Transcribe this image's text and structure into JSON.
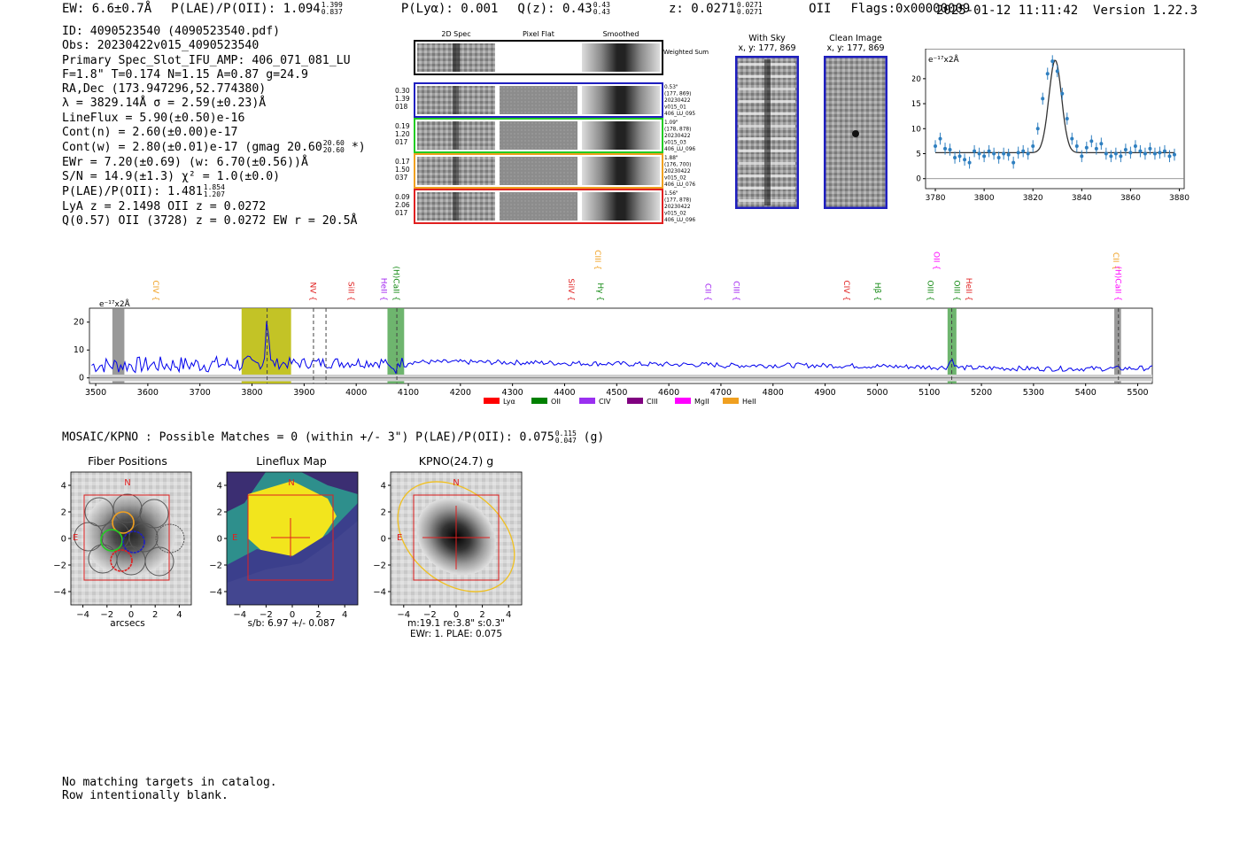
{
  "header": {
    "ew": "EW: 6.6±0.7Å",
    "plae_label": "P(LAE)/P(OII): 1.094",
    "plae_hi": "1.399",
    "plae_lo": "0.837",
    "plya": "P(Lyα): 0.001",
    "qz_label": "Q(z): 0.43",
    "qz_hi": "0.43",
    "qz_lo": "0.43",
    "z_label": "z: 0.0271",
    "z_hi": "0.0271",
    "z_lo": "0.0271",
    "z_line": "OII",
    "flags": "Flags:0x00000009",
    "timestamp": "2025-01-12 11:11:42",
    "version": "Version 1.22.3"
  },
  "info": {
    "id": "ID: 4090523540 (4090523540.pdf)",
    "obs": "Obs: 20230422v015_4090523540",
    "primary": "Primary Spec_Slot_IFU_AMP: 406_071_081_LU",
    "params": "F=1.8\"  T=0.174  N=1.15  A=0.87  g=24.9",
    "radec": "RA,Dec (173.947296,52.774380)",
    "lambda": "λ = 3829.14Å   σ = 2.59(±0.23)Å",
    "lineflux": "LineFlux = 5.90(±0.50)e-16",
    "contn": "Cont(n) = 2.60(±0.00)e-17",
    "contw": "Cont(w) = 2.80(±0.01)e-17 (gmag 20.60",
    "gmag_hi": "20.60",
    "gmag_lo": "20.60",
    "contw_end": "*)",
    "ewr": "EWr = 7.20(±0.69) (w: 6.70(±0.56))Å",
    "sn": "S/N = 14.9(±1.3)  χ² = 1.0(±0.0)",
    "plae": "P(LAE)/P(OII): 1.481",
    "plae_hi": "1.854",
    "plae_lo": "1.207",
    "lya": "LyA z = 2.1498  OII z = 0.0272",
    "q": "Q(0.57) OII (3728) z = 0.0272  EW r = 20.5Å"
  },
  "cutouts": {
    "col_labels": [
      "2D Spec",
      "Pixel Flat",
      "Smoothed"
    ],
    "weighted": "Weighted Sum",
    "rows": [
      {
        "left": [
          "0.30",
          "1.39",
          "018"
        ],
        "right": [
          "0.53\"",
          "(177, 869)",
          "20230422",
          "v015_01",
          "406_LU_095"
        ],
        "color": "#1f1fbf"
      },
      {
        "left": [
          "0.19",
          "1.20",
          "017"
        ],
        "right": [
          "1.09\"",
          "(178, 878)",
          "20230422",
          "v015_03",
          "406_LU_096"
        ],
        "color": "#22cc22"
      },
      {
        "left": [
          "0.17",
          "1.50",
          "037"
        ],
        "right": [
          "1.88\"",
          "(176, 700)",
          "20230422",
          "v015_02",
          "406_LU_076"
        ],
        "color": "#f0a020"
      },
      {
        "left": [
          "0.09",
          "2.06",
          "017"
        ],
        "right": [
          "1.56\"",
          "(177, 878)",
          "20230422",
          "v015_02",
          "406_LU_096"
        ],
        "color": "#e02020"
      }
    ],
    "with_sky": "With Sky",
    "with_sky_xy": "x, y: 177, 869",
    "clean": "Clean Image",
    "clean_xy": "x, y: 177, 869"
  },
  "zoom_chart": {
    "type": "scatter",
    "title": "",
    "unit_label": "e⁻¹⁷x2Å",
    "xlim": [
      3776,
      3882
    ],
    "ylim": [
      -2,
      26
    ],
    "xticks": [
      3780,
      3800,
      3820,
      3840,
      3860,
      3880
    ],
    "yticks": [
      0,
      5,
      10,
      15,
      20
    ],
    "fit": {
      "center": 3829.14,
      "sigma": 2.59,
      "amp": 18.5,
      "cont": 5.2
    },
    "points": [
      [
        3780,
        6.5
      ],
      [
        3782,
        8
      ],
      [
        3784,
        6
      ],
      [
        3786,
        5.8
      ],
      [
        3788,
        4.2
      ],
      [
        3790,
        4.5
      ],
      [
        3792,
        3.8
      ],
      [
        3794,
        3.2
      ],
      [
        3796,
        5.5
      ],
      [
        3798,
        5
      ],
      [
        3800,
        4.5
      ],
      [
        3802,
        5.5
      ],
      [
        3804,
        5
      ],
      [
        3806,
        4.2
      ],
      [
        3808,
        5
      ],
      [
        3810,
        4.8
      ],
      [
        3812,
        3.2
      ],
      [
        3814,
        5.2
      ],
      [
        3816,
        5.5
      ],
      [
        3818,
        5
      ],
      [
        3820,
        6.5
      ],
      [
        3822,
        10
      ],
      [
        3824,
        16
      ],
      [
        3826,
        21
      ],
      [
        3828,
        23.5
      ],
      [
        3830,
        21.5
      ],
      [
        3832,
        17
      ],
      [
        3834,
        12
      ],
      [
        3836,
        8
      ],
      [
        3838,
        6.5
      ],
      [
        3840,
        4.5
      ],
      [
        3842,
        6.2
      ],
      [
        3844,
        7.5
      ],
      [
        3846,
        6
      ],
      [
        3848,
        7
      ],
      [
        3850,
        5
      ],
      [
        3852,
        4.5
      ],
      [
        3854,
        5
      ],
      [
        3856,
        4.5
      ],
      [
        3858,
        5.8
      ],
      [
        3860,
        5.2
      ],
      [
        3862,
        6.5
      ],
      [
        3864,
        5.5
      ],
      [
        3866,
        5
      ],
      [
        3868,
        6
      ],
      [
        3870,
        5
      ],
      [
        3872,
        5.2
      ],
      [
        3874,
        5.5
      ],
      [
        3876,
        4.5
      ],
      [
        3878,
        4.8
      ]
    ]
  },
  "spectrum_chart": {
    "type": "line",
    "unit_label": "e⁻¹⁷x2Å",
    "xlim": [
      3488,
      5528
    ],
    "ylim": [
      -2,
      25
    ],
    "xticks": [
      3500,
      3600,
      3700,
      3800,
      3900,
      4000,
      4100,
      4200,
      4300,
      4400,
      4500,
      4600,
      4700,
      4800,
      4900,
      5000,
      5100,
      5200,
      5300,
      5400,
      5500
    ],
    "yticks": [
      0,
      10,
      20
    ],
    "peak_wave": 3829.14,
    "dashed_lines": [
      3829,
      3918,
      3942,
      4078,
      5143,
      5463
    ],
    "bands": [
      {
        "x0": 3780,
        "x1": 3875,
        "color": "#b8b800"
      },
      {
        "x0": 4060,
        "x1": 4092,
        "color": "#55a855"
      },
      {
        "x0": 5135,
        "x1": 5152,
        "color": "#55a855"
      },
      {
        "x0": 3532,
        "x1": 3555,
        "color": "#777777"
      },
      {
        "x0": 5455,
        "x1": 5468,
        "color": "#777777"
      }
    ],
    "line_labels": [
      {
        "name": "CIV",
        "x": 3605,
        "color": "#f0a020",
        "row": 2
      },
      {
        "name": "NV",
        "x": 3907,
        "color": "#e02020",
        "row": 2
      },
      {
        "name": "SiII",
        "x": 3980,
        "color": "#e02020",
        "row": 2
      },
      {
        "name": "HeII",
        "x": 4043,
        "color": "#a020f0",
        "row": 2
      },
      {
        "name": "(H)CaII",
        "x": 4067,
        "color": "#118811",
        "row": 2
      },
      {
        "name": "SiIV",
        "x": 4403,
        "color": "#e02020",
        "row": 2
      },
      {
        "name": "CIII",
        "x": 4454,
        "color": "#f0a020",
        "row": 1
      },
      {
        "name": "Hγ",
        "x": 4459,
        "color": "#118811",
        "row": 2
      },
      {
        "name": "CII",
        "x": 4665,
        "color": "#a020f0",
        "row": 2
      },
      {
        "name": "CIII",
        "x": 4720,
        "color": "#a020f0",
        "row": 2
      },
      {
        "name": "CIV",
        "x": 4931,
        "color": "#e02020",
        "row": 2
      },
      {
        "name": "Hβ",
        "x": 4991,
        "color": "#118811",
        "row": 2
      },
      {
        "name": "OIII",
        "x": 5092,
        "color": "#118811",
        "row": 2
      },
      {
        "name": "OII",
        "x": 5104,
        "color": "#ff00ff",
        "row": 1
      },
      {
        "name": "OIII",
        "x": 5143,
        "color": "#118811",
        "row": 2
      },
      {
        "name": "HeII",
        "x": 5166,
        "color": "#e02020",
        "row": 2
      },
      {
        "name": "CII",
        "x": 5448,
        "color": "#f0a020",
        "row": 1
      },
      {
        "name": "(H)CaII",
        "x": 5452,
        "color": "#ff00ff",
        "row": 2
      }
    ],
    "legend": [
      {
        "name": "Lyα",
        "color": "#ff0000"
      },
      {
        "name": "OII",
        "color": "#008000"
      },
      {
        "name": "CIV",
        "color": "#9a30f0"
      },
      {
        "name": "CIII",
        "color": "#800080"
      },
      {
        "name": "MgII",
        "color": "#ff00ff"
      },
      {
        "name": "HeII",
        "color": "#f0a020"
      }
    ]
  },
  "matches": {
    "text": "MOSAIC/KPNO : Possible Matches = 0 (within +/- 3\")  P(LAE)/P(OII): 0.075",
    "hi": "0.115",
    "lo": "0.047",
    "suffix": "(g)"
  },
  "panels": [
    {
      "title": "Fiber Positions",
      "xlabel": "arcsecs",
      "xlabel2": "",
      "xlabel3": "",
      "north": "N",
      "east": "E"
    },
    {
      "title": "Lineflux Map",
      "xlabel": "s/b: 6.97 +/- 0.087",
      "xlabel2": "",
      "xlabel3": "",
      "north": "N",
      "east": "E"
    },
    {
      "title": "KPNO(24.7) g",
      "xlabel": "m:19.1   re:3.8\"   s:0.3\"",
      "xlabel2": "EWr: 1. PLAE: 0.075",
      "xlabel3": "",
      "north": "N",
      "east": "E"
    }
  ],
  "panel_ticks": [
    "−4",
    "−2",
    "0",
    "2",
    "4"
  ],
  "footer": {
    "line1": "No matching targets in catalog.",
    "line2": "Row intentionally blank."
  }
}
